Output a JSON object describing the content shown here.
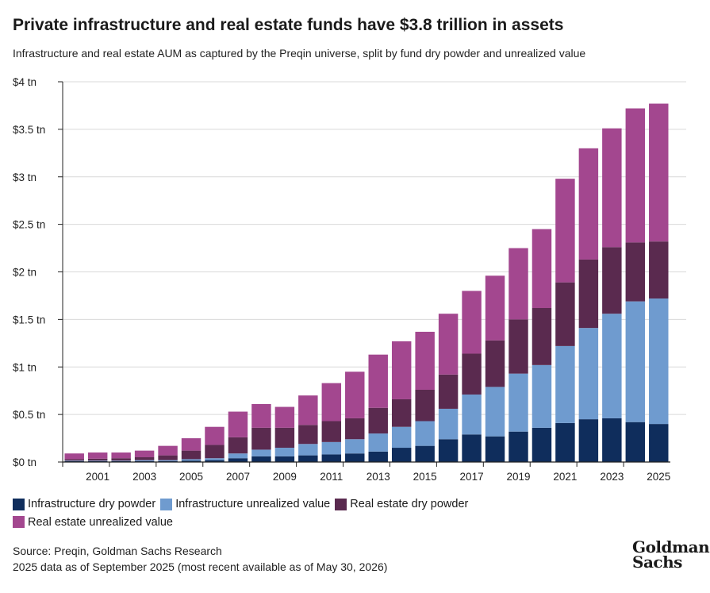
{
  "header": {
    "title": "Private infrastructure and real estate funds have $3.8 trillion in assets",
    "subtitle": "Infrastructure and real estate AUM as captured by the Preqin universe, split by fund dry powder and unrealized value"
  },
  "footer": {
    "source": "Source: Preqin, Goldman Sachs Research",
    "note": "2025 data as of September 2025 (most recent available as of May 30, 2026)",
    "logo_line1": "Goldman",
    "logo_line2": "Sachs"
  },
  "chart_data": {
    "type": "bar",
    "stacked": true,
    "categories": [
      2000,
      2001,
      2002,
      2003,
      2004,
      2005,
      2006,
      2007,
      2008,
      2009,
      2010,
      2011,
      2012,
      2013,
      2014,
      2015,
      2016,
      2017,
      2018,
      2019,
      2020,
      2021,
      2022,
      2023,
      2024,
      2025
    ],
    "x_tick_labels": [
      "2001",
      "2003",
      "2005",
      "2007",
      "2009",
      "2011",
      "2013",
      "2015",
      "2017",
      "2019",
      "2021",
      "2023",
      "2025"
    ],
    "y_ticks": [
      0,
      0.5,
      1,
      1.5,
      2,
      2.5,
      3,
      3.5,
      4
    ],
    "y_tick_labels": [
      "$0 tn",
      "$0.5 tn",
      "$1 tn",
      "$1.5 tn",
      "$2 tn",
      "$2.5 tn",
      "$3 tn",
      "$3.5 tn",
      "$4 tn"
    ],
    "ylim": [
      0,
      4
    ],
    "unit": "tn USD",
    "grid": true,
    "legend_position": "bottom",
    "series": [
      {
        "name": "Infrastructure dry powder",
        "color": "#0f2d5c",
        "values": [
          0.01,
          0.01,
          0.01,
          0.01,
          0.01,
          0.015,
          0.02,
          0.04,
          0.06,
          0.06,
          0.07,
          0.08,
          0.09,
          0.11,
          0.15,
          0.17,
          0.24,
          0.29,
          0.27,
          0.32,
          0.36,
          0.41,
          0.45,
          0.46,
          0.42,
          0.4
        ]
      },
      {
        "name": "Infrastructure unrealized value",
        "color": "#6f9bcf",
        "values": [
          0.005,
          0.005,
          0.005,
          0.01,
          0.01,
          0.015,
          0.02,
          0.05,
          0.07,
          0.09,
          0.12,
          0.13,
          0.15,
          0.19,
          0.22,
          0.26,
          0.32,
          0.42,
          0.52,
          0.61,
          0.66,
          0.81,
          0.96,
          1.1,
          1.27,
          1.32
        ]
      },
      {
        "name": "Real estate dry powder",
        "color": "#5a2a4f",
        "values": [
          0.015,
          0.02,
          0.025,
          0.03,
          0.05,
          0.09,
          0.14,
          0.17,
          0.23,
          0.21,
          0.2,
          0.22,
          0.22,
          0.27,
          0.29,
          0.33,
          0.36,
          0.43,
          0.49,
          0.57,
          0.6,
          0.67,
          0.72,
          0.7,
          0.62,
          0.6
        ]
      },
      {
        "name": "Real estate unrealized value",
        "color": "#a3478f",
        "values": [
          0.06,
          0.065,
          0.06,
          0.07,
          0.1,
          0.13,
          0.19,
          0.27,
          0.25,
          0.22,
          0.31,
          0.4,
          0.49,
          0.56,
          0.61,
          0.61,
          0.64,
          0.66,
          0.68,
          0.75,
          0.83,
          1.09,
          1.17,
          1.25,
          1.41,
          1.45
        ]
      }
    ]
  }
}
